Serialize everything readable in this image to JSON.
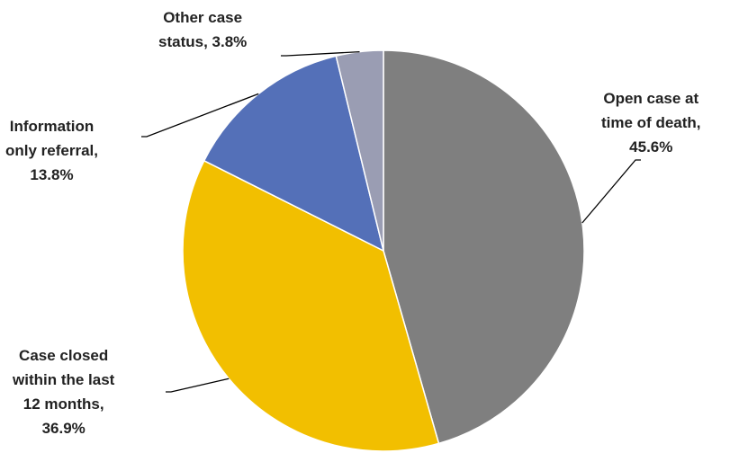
{
  "chart_data": {
    "type": "pie",
    "title": "",
    "slices": [
      {
        "name": "Open case at time of death",
        "value": 45.6,
        "color": "#7F7F7F",
        "label_lines": [
          "Open case at",
          "time of death,",
          "45.6%"
        ]
      },
      {
        "name": "Case closed within the last 12 months",
        "value": 36.9,
        "color": "#F2BF00",
        "label_lines": [
          "Case closed",
          "within the last",
          "12 months,",
          "36.9%"
        ]
      },
      {
        "name": "Information only referral",
        "value": 13.8,
        "color": "#5470B8",
        "label_lines": [
          "Information",
          "only referral,",
          "13.8%"
        ]
      },
      {
        "name": "Other case status",
        "value": 3.8,
        "color": "#9A9DB3",
        "label_lines": [
          "Other case",
          "status, 3.8%"
        ]
      }
    ],
    "start_angle": "12 o'clock",
    "direction": "clockwise",
    "legend": "none"
  }
}
